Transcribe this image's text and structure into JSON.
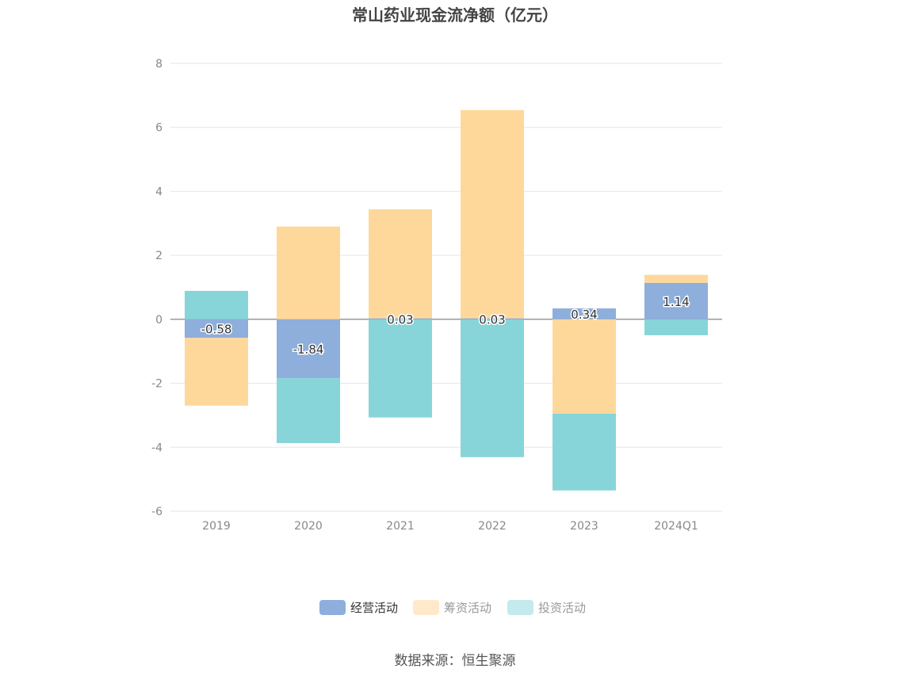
{
  "chart_data": {
    "type": "bar",
    "stacked": true,
    "title": "常山药业现金流净额（亿元）",
    "categories": [
      "2019",
      "2020",
      "2021",
      "2022",
      "2023",
      "2024Q1"
    ],
    "series": [
      {
        "name": "经营活动",
        "color": "#8eaedb",
        "values": [
          -0.58,
          -1.84,
          0.03,
          0.03,
          0.34,
          1.14
        ],
        "labels": [
          "-0.58",
          "-1.84",
          "0.03",
          "0.03",
          "0.34",
          "1.14"
        ]
      },
      {
        "name": "筹资活动",
        "color": "#fed89b",
        "legend_color": "#ffe9c8",
        "values": [
          -2.12,
          2.9,
          3.41,
          6.51,
          -2.95,
          0.25
        ]
      },
      {
        "name": "投资活动",
        "color": "#87d5d9",
        "legend_color": "#c3eaec",
        "values": [
          0.89,
          -2.03,
          -3.07,
          -4.31,
          -2.4,
          -0.5
        ]
      }
    ],
    "ylim": [
      -6,
      8
    ],
    "yticks": [
      "8",
      "6",
      "4",
      "2",
      "0",
      "-2",
      "-4",
      "-6"
    ],
    "grid": true,
    "legend_position": "bottom",
    "source": "数据来源：恒生聚源"
  }
}
